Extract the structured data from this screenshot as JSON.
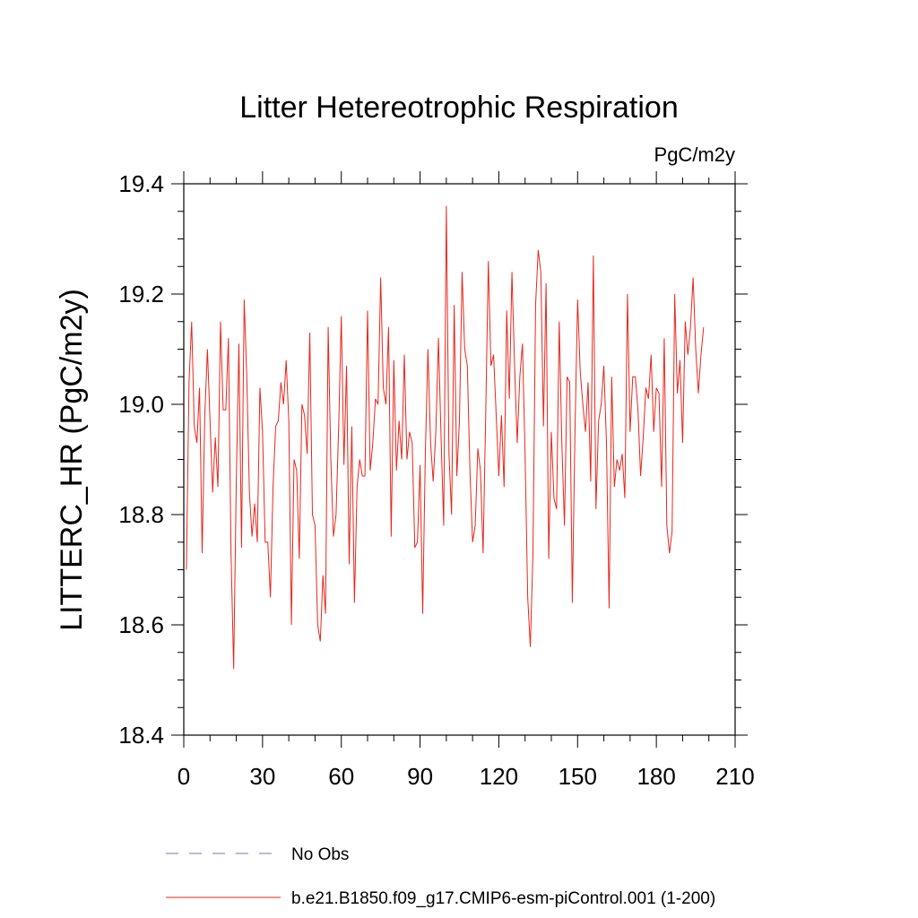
{
  "chart_data": {
    "type": "line",
    "title": "Litter Hetereotrophic Respiration",
    "units_label": "PgC/m2y",
    "ylabel": "LITTERC_HR  (PgC/m2y)",
    "xlabel": "",
    "xlim": [
      0,
      210
    ],
    "ylim": [
      18.4,
      19.4
    ],
    "x_ticks": [
      0,
      30,
      60,
      90,
      120,
      150,
      180,
      210
    ],
    "x_tick_labels": [
      "0",
      "30",
      "60",
      "90",
      "120",
      "150",
      "180",
      "210"
    ],
    "y_ticks": [
      18.4,
      18.6,
      18.8,
      19.0,
      19.2,
      19.4
    ],
    "y_tick_labels": [
      "18.4",
      "18.6",
      "18.8",
      "19.0",
      "19.2",
      "19.4"
    ],
    "legend": [
      {
        "label": "No Obs",
        "color": "#7b73b8",
        "style": "dashed"
      },
      {
        "label": "b.e21.B1850.f09_g17.CMIP6-esm-piControl.001 (1-200)",
        "color": "#e8261c",
        "style": "solid"
      }
    ],
    "series": [
      {
        "name": "b.e21.B1850.f09_g17.CMIP6-esm-piControl.001 (1-200)",
        "color": "#e8261c",
        "x_start": 1,
        "values": [
          18.7,
          19.04,
          19.15,
          18.96,
          18.93,
          19.03,
          18.73,
          18.98,
          19.1,
          18.97,
          18.84,
          18.94,
          18.85,
          19.15,
          18.99,
          18.99,
          19.12,
          18.73,
          18.52,
          18.86,
          19.11,
          18.74,
          19.19,
          19.05,
          18.84,
          18.76,
          18.82,
          18.75,
          19.03,
          18.95,
          18.75,
          18.75,
          18.65,
          18.85,
          18.96,
          18.97,
          19.04,
          19.0,
          19.08,
          18.97,
          18.6,
          18.9,
          18.88,
          18.72,
          19.0,
          18.98,
          18.91,
          19.13,
          18.8,
          18.78,
          18.6,
          18.57,
          18.69,
          18.62,
          19.14,
          18.9,
          18.76,
          18.8,
          18.96,
          19.16,
          18.89,
          19.07,
          18.71,
          18.96,
          18.64,
          18.85,
          18.9,
          18.87,
          18.87,
          19.17,
          18.88,
          18.93,
          19.01,
          19.0,
          19.23,
          19.03,
          19.0,
          19.14,
          18.76,
          19.08,
          18.88,
          18.97,
          18.9,
          19.09,
          18.9,
          18.95,
          18.93,
          18.74,
          18.75,
          18.89,
          18.62,
          18.91,
          19.1,
          18.93,
          18.86,
          18.95,
          19.12,
          18.94,
          18.78,
          19.36,
          18.91,
          18.8,
          19.18,
          18.87,
          18.97,
          19.24,
          19.1,
          19.07,
          18.88,
          18.75,
          18.78,
          18.92,
          18.88,
          18.73,
          18.98,
          19.26,
          19.07,
          19.09,
          18.98,
          18.87,
          18.98,
          18.85,
          19.17,
          19.01,
          19.24,
          19.07,
          18.93,
          19.05,
          19.11,
          18.91,
          18.65,
          18.56,
          18.73,
          19.18,
          19.28,
          19.24,
          18.96,
          19.22,
          18.72,
          18.95,
          18.83,
          18.81,
          19.15,
          18.93,
          18.78,
          19.05,
          19.04,
          18.64,
          18.95,
          19.19,
          19.06,
          19.0,
          18.95,
          19.04,
          18.86,
          19.27,
          18.81,
          18.97,
          19.0,
          19.07,
          18.93,
          18.63,
          19.05,
          18.85,
          18.9,
          18.88,
          18.91,
          18.83,
          19.2,
          18.95,
          19.05,
          19.05,
          18.99,
          18.87,
          18.94,
          19.03,
          19.01,
          19.09,
          18.95,
          19.03,
          19.02,
          18.85,
          19.12,
          18.78,
          18.73,
          18.77,
          19.2,
          19.02,
          19.08,
          18.93,
          19.15,
          19.09,
          19.14,
          19.23,
          19.1,
          19.02,
          19.09,
          19.14
        ]
      }
    ]
  }
}
